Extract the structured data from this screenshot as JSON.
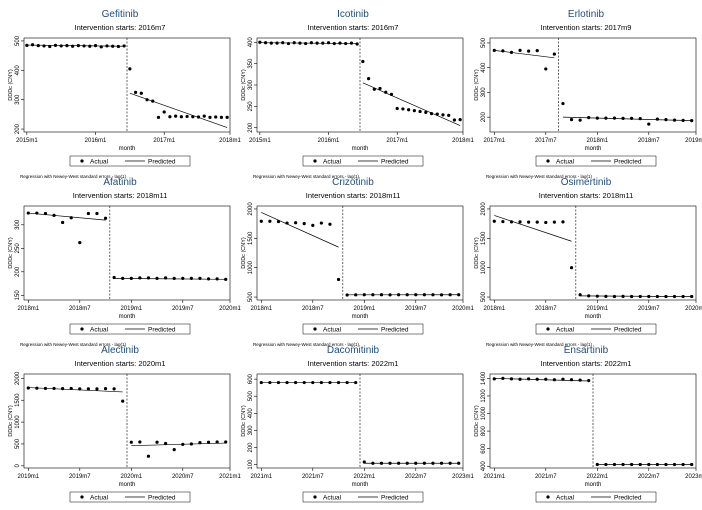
{
  "footnote": "Regression with Newey-West standard errors - lag(1)",
  "legend": {
    "actual": "Actual",
    "predicted": "Predicted"
  },
  "xlabel": "month",
  "ylabel": "DDDc (CNY)",
  "colors": {
    "title": "#1f4e79",
    "marks": "#000000",
    "frame": "#000000"
  },
  "chart_data": [
    {
      "type": "scatter",
      "title": "Gefitinib",
      "subtitle": "Intervention starts: 2016m7",
      "ylim": [
        190,
        510
      ],
      "yticks": [
        200,
        300,
        400,
        500
      ],
      "x_range": [
        "2015m1",
        "2017m12"
      ],
      "xticks": [
        "2015m1",
        "2016m1",
        "2017m1",
        "2018m1"
      ],
      "intervention": "2016m7",
      "series": [
        {
          "name": "Actual",
          "x": [
            "2015m1",
            "2015m2",
            "2015m3",
            "2015m4",
            "2015m5",
            "2015m6",
            "2015m7",
            "2015m8",
            "2015m9",
            "2015m10",
            "2015m11",
            "2015m12",
            "2016m1",
            "2016m2",
            "2016m3",
            "2016m4",
            "2016m5",
            "2016m6",
            "2016m7",
            "2016m8",
            "2016m9",
            "2016m10",
            "2016m11",
            "2016m12",
            "2017m1",
            "2017m2",
            "2017m3",
            "2017m4",
            "2017m5",
            "2017m6",
            "2017m7",
            "2017m8",
            "2017m9",
            "2017m10",
            "2017m11",
            "2017m12"
          ],
          "values": [
            485,
            487,
            484,
            483,
            481,
            485,
            483,
            484,
            482,
            484,
            483,
            482,
            484,
            480,
            483,
            482,
            481,
            483,
            405,
            325,
            322,
            300,
            295,
            240,
            258,
            242,
            244,
            242,
            243,
            242,
            241,
            244,
            240,
            241,
            240,
            240
          ]
        },
        {
          "name": "Predicted",
          "segments": [
            {
              "x": [
                "2015m1",
                "2016m6"
              ],
              "values": [
                486,
                482
              ]
            },
            {
              "x": [
                "2016m7",
                "2017m12"
              ],
              "values": [
                322,
                205
              ]
            }
          ]
        }
      ]
    },
    {
      "type": "scatter",
      "title": "Icotinib",
      "subtitle": "Intervention starts: 2016m7",
      "ylim": [
        190,
        410
      ],
      "yticks": [
        200,
        250,
        300,
        350,
        400
      ],
      "x_range": [
        "2015m1",
        "2017m12"
      ],
      "xticks": [
        "2015m1",
        "2016m1",
        "2017m1",
        "2018m1"
      ],
      "intervention": "2016m7",
      "series": [
        {
          "name": "Actual",
          "x": [
            "2015m1",
            "2015m2",
            "2015m3",
            "2015m4",
            "2015m5",
            "2015m6",
            "2015m7",
            "2015m8",
            "2015m9",
            "2015m10",
            "2015m11",
            "2015m12",
            "2016m1",
            "2016m2",
            "2016m3",
            "2016m4",
            "2016m5",
            "2016m6",
            "2016m7",
            "2016m8",
            "2016m9",
            "2016m10",
            "2016m11",
            "2016m12",
            "2017m1",
            "2017m2",
            "2017m3",
            "2017m4",
            "2017m5",
            "2017m6",
            "2017m7",
            "2017m8",
            "2017m9",
            "2017m10",
            "2017m11",
            "2017m12"
          ],
          "values": [
            400,
            399,
            398,
            398,
            399,
            397,
            399,
            398,
            397,
            399,
            398,
            398,
            399,
            397,
            398,
            397,
            398,
            396,
            355,
            315,
            290,
            292,
            283,
            278,
            245,
            244,
            242,
            240,
            238,
            236,
            233,
            232,
            230,
            229,
            218,
            219
          ]
        },
        {
          "name": "Predicted",
          "segments": [
            {
              "x": [
                "2015m1",
                "2016m6"
              ],
              "values": [
                399,
                397
              ]
            },
            {
              "x": [
                "2016m7",
                "2017m12"
              ],
              "values": [
                305,
                205
              ]
            }
          ]
        }
      ]
    },
    {
      "type": "scatter",
      "title": "Erlotinib",
      "subtitle": "Intervention starts: 2017m9",
      "ylim": [
        140,
        520
      ],
      "yticks": [
        200,
        300,
        400,
        500
      ],
      "x_range": [
        "2017m1",
        "2018m12"
      ],
      "xticks": [
        "2017m1",
        "2017m7",
        "2018m1",
        "2018m7",
        "2019m1"
      ],
      "intervention": "2017m9",
      "series": [
        {
          "name": "Actual",
          "x": [
            "2017m1",
            "2017m2",
            "2017m3",
            "2017m4",
            "2017m5",
            "2017m6",
            "2017m7",
            "2017m8",
            "2017m9",
            "2017m10",
            "2017m11",
            "2017m12",
            "2018m1",
            "2018m2",
            "2018m3",
            "2018m4",
            "2018m5",
            "2018m6",
            "2018m7",
            "2018m8",
            "2018m9",
            "2018m10",
            "2018m11",
            "2018m12"
          ],
          "values": [
            470,
            468,
            462,
            470,
            467,
            469,
            395,
            455,
            255,
            190,
            188,
            198,
            196,
            196,
            196,
            195,
            195,
            194,
            172,
            192,
            190,
            188,
            187,
            186
          ]
        },
        {
          "name": "Predicted",
          "segments": [
            {
              "x": [
                "2017m1",
                "2017m8"
              ],
              "values": [
                470,
                440
              ]
            },
            {
              "x": [
                "2017m9",
                "2018m12"
              ],
              "values": [
                200,
                186
              ]
            }
          ]
        }
      ]
    },
    {
      "type": "scatter",
      "title": "Afatinib",
      "subtitle": "Intervention starts: 2018m11",
      "ylim": [
        140,
        340
      ],
      "yticks": [
        150,
        200,
        250,
        300
      ],
      "x_range": [
        "2018m1",
        "2019m12"
      ],
      "xticks": [
        "2018m1",
        "2018m7",
        "2019m1",
        "2019m7",
        "2020m1"
      ],
      "intervention": "2018m11",
      "series": [
        {
          "name": "Actual",
          "x": [
            "2018m1",
            "2018m2",
            "2018m3",
            "2018m4",
            "2018m5",
            "2018m6",
            "2018m7",
            "2018m8",
            "2018m9",
            "2018m10",
            "2018m11",
            "2018m12",
            "2019m1",
            "2019m2",
            "2019m3",
            "2019m4",
            "2019m5",
            "2019m6",
            "2019m7",
            "2019m8",
            "2019m9",
            "2019m10",
            "2019m11",
            "2019m12"
          ],
          "values": [
            325,
            325,
            324,
            320,
            305,
            315,
            262,
            324,
            324,
            314,
            188,
            186,
            186,
            187,
            187,
            186,
            187,
            186,
            186,
            186,
            186,
            185,
            185,
            184
          ]
        },
        {
          "name": "Predicted",
          "segments": [
            {
              "x": [
                "2018m1",
                "2018m10"
              ],
              "values": [
                325,
                310
              ]
            },
            {
              "x": [
                "2018m11",
                "2019m12"
              ],
              "values": [
                186,
                184
              ]
            }
          ]
        }
      ]
    },
    {
      "type": "scatter",
      "title": "Crizotinib",
      "subtitle": "Intervention starts: 2018m11",
      "ylim": [
        450,
        2050
      ],
      "yticks": [
        500,
        1000,
        1500,
        2000
      ],
      "x_range": [
        "2018m1",
        "2019m12"
      ],
      "xticks": [
        "2018m1",
        "2018m7",
        "2019m1",
        "2019m7",
        "2020m1"
      ],
      "intervention": "2018m11",
      "series": [
        {
          "name": "Actual",
          "x": [
            "2018m1",
            "2018m2",
            "2018m3",
            "2018m4",
            "2018m5",
            "2018m6",
            "2018m7",
            "2018m8",
            "2018m9",
            "2018m10",
            "2018m11",
            "2018m12",
            "2019m1",
            "2019m2",
            "2019m3",
            "2019m4",
            "2019m5",
            "2019m6",
            "2019m7",
            "2019m8",
            "2019m9",
            "2019m10",
            "2019m11",
            "2019m12"
          ],
          "values": [
            1790,
            1790,
            1785,
            1760,
            1765,
            1750,
            1720,
            1760,
            1740,
            800,
            535,
            538,
            540,
            540,
            540,
            538,
            540,
            539,
            540,
            540,
            539,
            538,
            540,
            539
          ]
        },
        {
          "name": "Predicted",
          "segments": [
            {
              "x": [
                "2018m1",
                "2018m10"
              ],
              "values": [
                1940,
                1350
              ]
            },
            {
              "x": [
                "2018m11",
                "2019m12"
              ],
              "values": [
                538,
                540
              ]
            }
          ]
        }
      ]
    },
    {
      "type": "scatter",
      "title": "Osimertinib",
      "subtitle": "Intervention starts: 2018m11",
      "ylim": [
        450,
        2050
      ],
      "yticks": [
        500,
        1000,
        1500,
        2000
      ],
      "x_range": [
        "2018m1",
        "2019m12"
      ],
      "xticks": [
        "2018m1",
        "2018m7",
        "2019m1",
        "2019m7",
        "2020m1"
      ],
      "intervention": "2018m11",
      "series": [
        {
          "name": "Actual",
          "x": [
            "2018m1",
            "2018m2",
            "2018m3",
            "2018m4",
            "2018m5",
            "2018m6",
            "2018m7",
            "2018m8",
            "2018m9",
            "2018m10",
            "2018m11",
            "2018m12",
            "2019m1",
            "2019m2",
            "2019m3",
            "2019m4",
            "2019m5",
            "2019m6",
            "2019m7",
            "2019m8",
            "2019m9",
            "2019m10",
            "2019m11",
            "2019m12"
          ],
          "values": [
            1790,
            1785,
            1780,
            1780,
            1775,
            1775,
            1770,
            1775,
            1780,
            1000,
            540,
            520,
            515,
            512,
            510,
            512,
            510,
            511,
            510,
            510,
            509,
            510,
            510,
            509
          ]
        },
        {
          "name": "Predicted",
          "segments": [
            {
              "x": [
                "2018m1",
                "2018m10"
              ],
              "values": [
                1890,
                1450
              ]
            },
            {
              "x": [
                "2018m11",
                "2019m12"
              ],
              "values": [
                520,
                508
              ]
            }
          ]
        }
      ]
    },
    {
      "type": "scatter",
      "title": "Alectinib",
      "subtitle": "Intervention starts: 2020m1",
      "ylim": [
        -50,
        2100
      ],
      "yticks": [
        0,
        500,
        1000,
        1500,
        2000
      ],
      "x_range": [
        "2019m1",
        "2020m12"
      ],
      "xticks": [
        "2019m1",
        "2019m7",
        "2020m1",
        "2020m7",
        "2021m1"
      ],
      "intervention": "2020m1",
      "series": [
        {
          "name": "Actual",
          "x": [
            "2019m1",
            "2019m2",
            "2019m3",
            "2019m4",
            "2019m5",
            "2019m6",
            "2019m7",
            "2019m8",
            "2019m9",
            "2019m10",
            "2019m11",
            "2019m12",
            "2020m1",
            "2020m2",
            "2020m3",
            "2020m4",
            "2020m5",
            "2020m6",
            "2020m7",
            "2020m8",
            "2020m9",
            "2020m10",
            "2020m11",
            "2020m12"
          ],
          "values": [
            1780,
            1775,
            1770,
            1770,
            1765,
            1770,
            1760,
            1760,
            1760,
            1765,
            1760,
            1480,
            540,
            545,
            220,
            540,
            510,
            370,
            490,
            500,
            530,
            540,
            545,
            545
          ]
        },
        {
          "name": "Predicted",
          "segments": [
            {
              "x": [
                "2019m1",
                "2019m12"
              ],
              "values": [
                1790,
                1690
              ]
            },
            {
              "x": [
                "2020m1",
                "2020m12"
              ],
              "values": [
                460,
                520
              ]
            }
          ]
        }
      ]
    },
    {
      "type": "scatter",
      "title": "Dacomitinib",
      "subtitle": "Intervention starts: 2022m1",
      "ylim": [
        80,
        630
      ],
      "yticks": [
        100,
        200,
        300,
        400,
        500,
        600
      ],
      "x_range": [
        "2021m1",
        "2022m12"
      ],
      "xticks": [
        "2021m1",
        "2021m7",
        "2022m1",
        "2022m7",
        "2023m1"
      ],
      "intervention": "2022m1",
      "series": [
        {
          "name": "Actual",
          "x": [
            "2021m1",
            "2021m2",
            "2021m3",
            "2021m4",
            "2021m5",
            "2021m6",
            "2021m7",
            "2021m8",
            "2021m9",
            "2021m10",
            "2021m11",
            "2021m12",
            "2022m1",
            "2022m2",
            "2022m3",
            "2022m4",
            "2022m5",
            "2022m6",
            "2022m7",
            "2022m8",
            "2022m9",
            "2022m10",
            "2022m11",
            "2022m12"
          ],
          "values": [
            580,
            580,
            580,
            580,
            580,
            580,
            580,
            580,
            580,
            580,
            580,
            580,
            115,
            108,
            108,
            108,
            108,
            108,
            108,
            108,
            108,
            108,
            108,
            108
          ]
        },
        {
          "name": "Predicted",
          "segments": [
            {
              "x": [
                "2021m1",
                "2021m12"
              ],
              "values": [
                580,
                580
              ]
            },
            {
              "x": [
                "2022m1",
                "2022m12"
              ],
              "values": [
                108,
                108
              ]
            }
          ]
        }
      ]
    },
    {
      "type": "scatter",
      "title": "Ensartinib",
      "subtitle": "Intervention starts: 2022m1",
      "ylim": [
        380,
        1450
      ],
      "yticks": [
        400,
        600,
        800,
        1000,
        1200,
        1400
      ],
      "x_range": [
        "2021m1",
        "2022m12"
      ],
      "xticks": [
        "2021m1",
        "2021m7",
        "2022m1",
        "2022m7",
        "2023m1"
      ],
      "intervention": "2022m1",
      "series": [
        {
          "name": "Actual",
          "x": [
            "2021m1",
            "2021m2",
            "2021m3",
            "2021m4",
            "2021m5",
            "2021m6",
            "2021m7",
            "2021m8",
            "2021m9",
            "2021m10",
            "2021m11",
            "2021m12",
            "2022m1",
            "2022m2",
            "2022m3",
            "2022m4",
            "2022m5",
            "2022m6",
            "2022m7",
            "2022m8",
            "2022m9",
            "2022m10",
            "2022m11",
            "2022m12"
          ],
          "values": [
            1395,
            1400,
            1395,
            1390,
            1395,
            1390,
            1390,
            1385,
            1390,
            1385,
            1380,
            1375,
            420,
            420,
            420,
            420,
            420,
            420,
            420,
            420,
            420,
            420,
            420,
            420
          ]
        },
        {
          "name": "Predicted",
          "segments": [
            {
              "x": [
                "2021m1",
                "2021m12"
              ],
              "values": [
                1400,
                1370
              ]
            },
            {
              "x": [
                "2022m1",
                "2022m12"
              ],
              "values": [
                420,
                420
              ]
            }
          ]
        }
      ]
    }
  ]
}
